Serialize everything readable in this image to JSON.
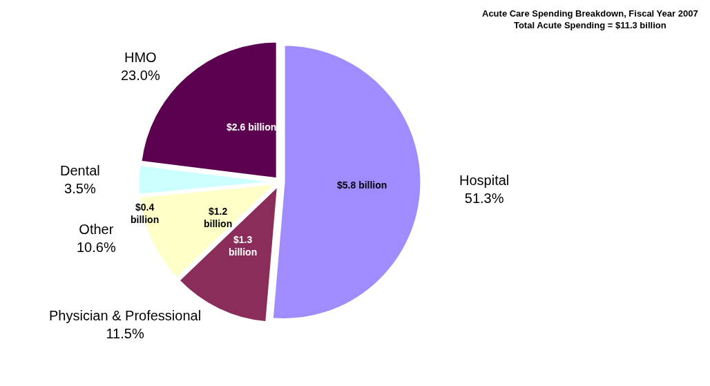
{
  "chart_data": {
    "type": "pie",
    "title": "Acute Care Spending Breakdown, Fiscal Year 2007",
    "subtitle": "Total Acute Spending = $11.3 billion",
    "categories": [
      "Hospital",
      "Physician & Professional",
      "Other",
      "Dental",
      "HMO"
    ],
    "values": [
      51.3,
      11.5,
      10.6,
      3.5,
      23.0
    ],
    "value_labels": [
      "51.3%",
      "11.5%",
      "10.6%",
      "3.5%",
      "23.0%"
    ],
    "colors": [
      "#a08cff",
      "#8b2d5a",
      "#ffffc8",
      "#ccffff",
      "#5c0050"
    ],
    "annotations": [
      {
        "text": "$5.8 billion",
        "x": "Hospital"
      },
      {
        "text": "$1.3 billion",
        "x": "Physician & Professional"
      },
      {
        "text": "$1.2 billion",
        "x": "Other"
      },
      {
        "text": "$0.4 billion",
        "x": "Dental"
      },
      {
        "text": "$2.6 billion",
        "x": "HMO"
      }
    ],
    "legend": false
  }
}
